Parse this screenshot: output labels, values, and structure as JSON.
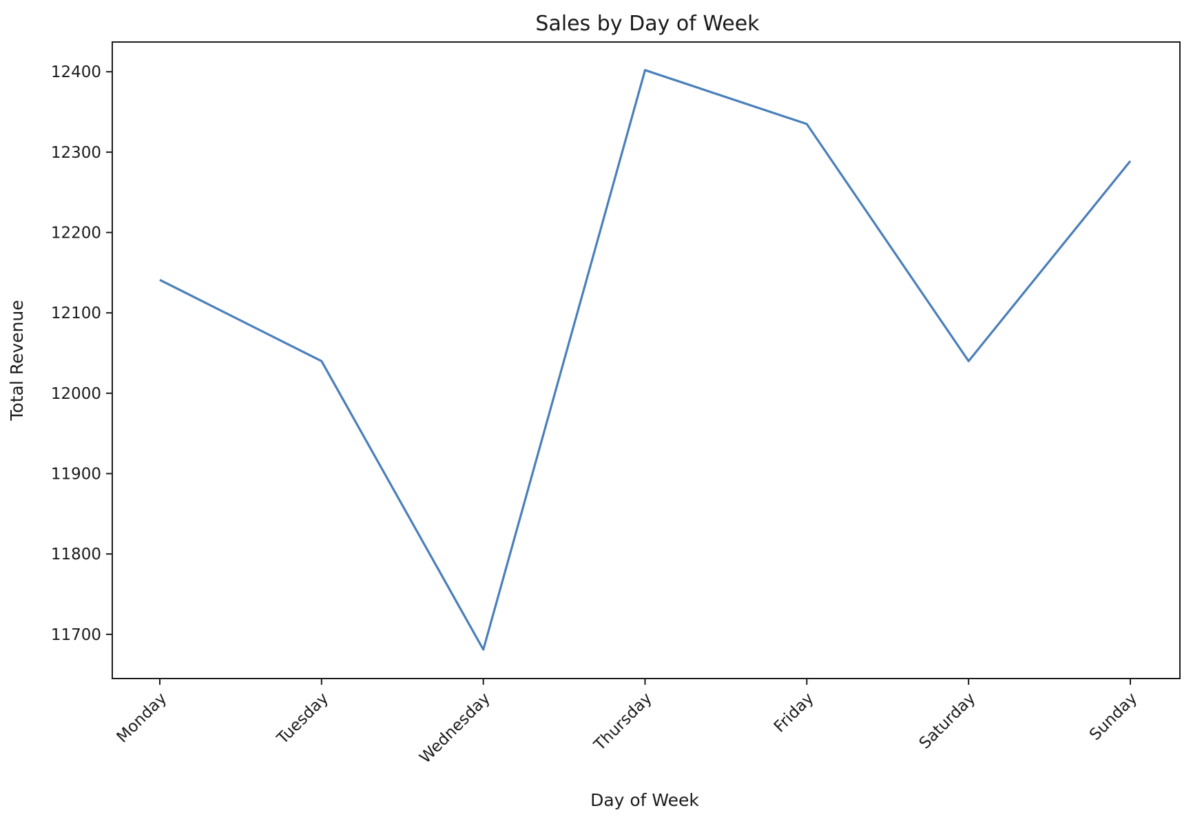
{
  "chart_data": {
    "type": "line",
    "title": "Sales by Day of Week",
    "xlabel": "Day of Week",
    "ylabel": "Total Revenue",
    "categories": [
      "Monday",
      "Tuesday",
      "Wednesday",
      "Thursday",
      "Friday",
      "Saturday",
      "Sunday"
    ],
    "series": [
      {
        "values": [
          12141,
          12040,
          11681,
          12402,
          12335,
          12040,
          12289
        ]
      }
    ],
    "yticks": [
      11700,
      11800,
      11900,
      12000,
      12100,
      12200,
      12300,
      12400
    ],
    "ylim": [
      11645,
      12437
    ],
    "grid": false,
    "x_tick_rotation": -45,
    "colors": {
      "line": "#4a7fba",
      "axes": "#1a1a1a",
      "text": "#1a1a1a",
      "background": "#ffffff"
    }
  }
}
